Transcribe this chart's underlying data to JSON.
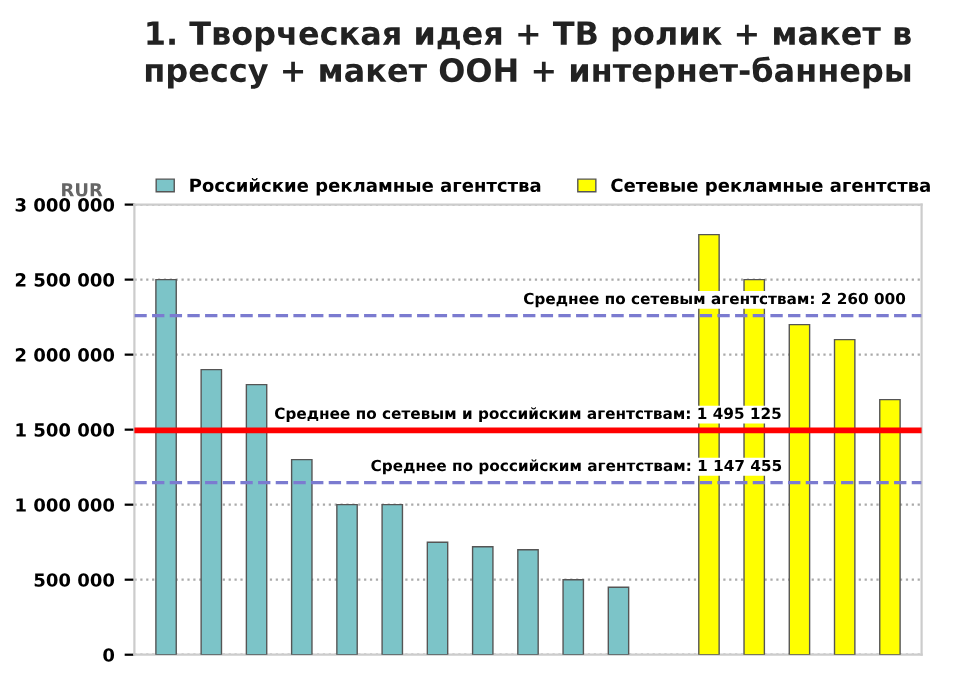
{
  "chart_data": {
    "type": "bar",
    "title": "1. Творческая идея + ТВ ролик + макет в прессу + макет ООН + интернет-баннеры",
    "ylabel": "RUR",
    "categories": [
      null,
      null,
      null,
      null,
      null,
      null,
      null,
      null,
      null,
      null,
      null,
      null,
      null,
      null,
      null,
      null,
      null
    ],
    "series": [
      {
        "name": "Российские рекламные агентства",
        "color": "#7cc4c8",
        "values": [
          2500000,
          1900000,
          1800000,
          1300000,
          1000000,
          1000000,
          750000,
          720000,
          700000,
          500000,
          450000,
          null,
          null,
          null,
          null,
          null,
          null
        ]
      },
      {
        "name": "Сетевые рекламные агентства",
        "color": "#ffff00",
        "values": [
          null,
          null,
          null,
          null,
          null,
          null,
          null,
          null,
          null,
          null,
          null,
          null,
          2800000,
          2500000,
          2200000,
          2100000,
          1700000
        ]
      }
    ],
    "ylim": [
      0,
      3000000
    ],
    "yticks": [
      0,
      {
        "value": 500000,
        "label": "500 000"
      },
      {
        "value": 1000000,
        "label": "1 000 000"
      },
      {
        "value": 1500000,
        "label": "1 500 000"
      },
      {
        "value": 2000000,
        "label": "2 000 000"
      },
      {
        "value": 2500000,
        "label": "2 500 000"
      },
      {
        "value": 3000000,
        "label": "3 000 000"
      }
    ],
    "ref_lines": [
      {
        "axis": "y",
        "value": 2260000,
        "label": "Среднее по сетевым агентствам: 2 260 000",
        "color": "#7b7bd0",
        "line_style": "dashed"
      },
      {
        "axis": "y",
        "value": 1495125,
        "label": "Среднее по сетевым и российским агентствам: 1 495 125",
        "color": "#ff0000",
        "line_style": "solid"
      },
      {
        "axis": "y",
        "value": 1147455,
        "label": "Среднее по российским агентствам: 1 147 455",
        "color": "#7b7bd0",
        "line_style": "dashed"
      }
    ],
    "grid": "y",
    "legend": "top"
  }
}
